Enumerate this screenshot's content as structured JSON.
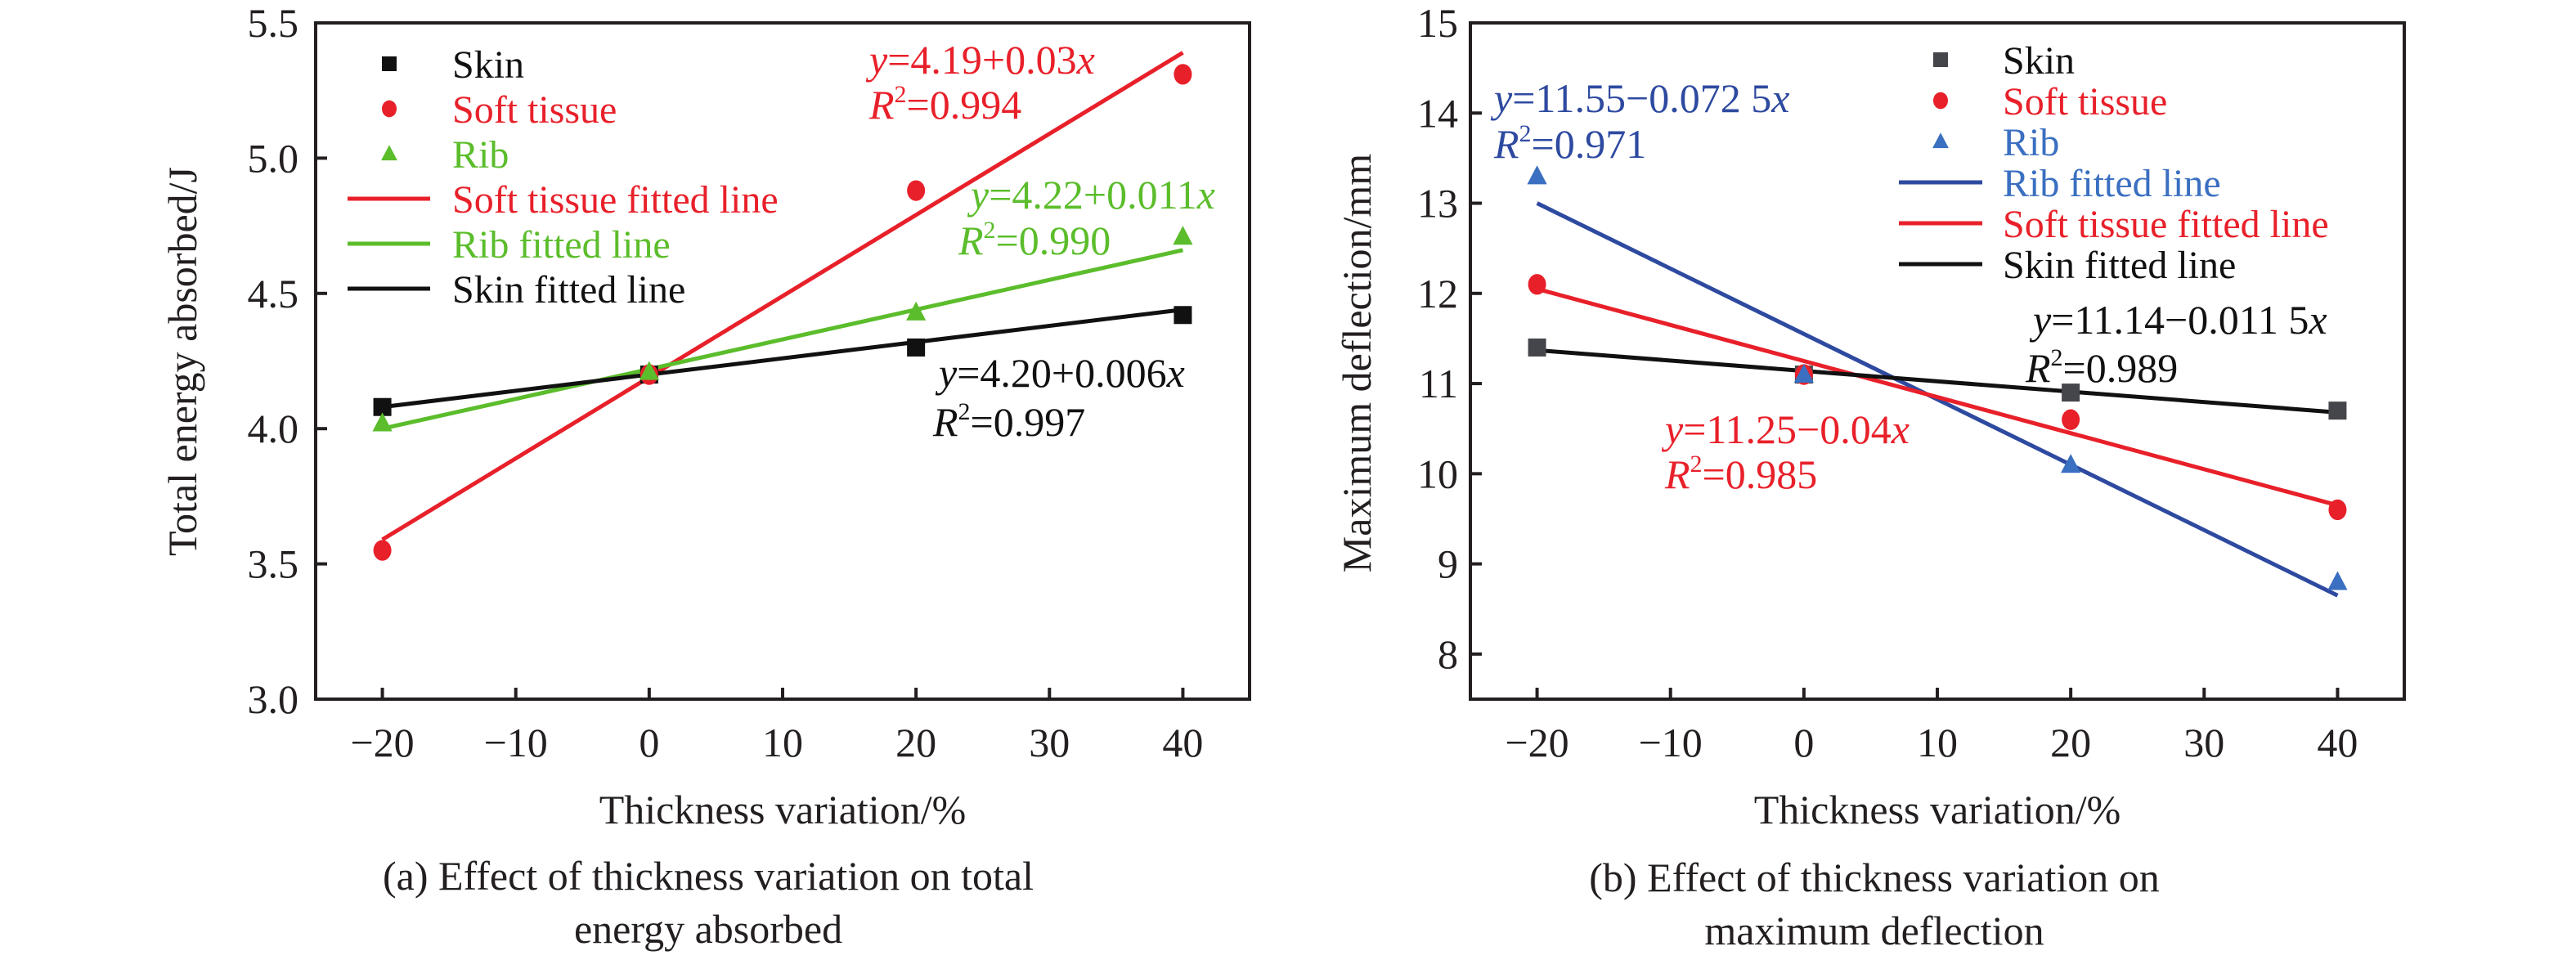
{
  "chart_data": [
    {
      "id": "a",
      "type": "scatter",
      "title": "",
      "caption_lines": [
        "(a) Effect of thickness variation on total",
        "energy absorbed"
      ],
      "xlabel": "Thickness variation/%",
      "ylabel": "Total energy absorbed/J",
      "xlim": [
        -25,
        45
      ],
      "ylim": [
        3.0,
        5.5
      ],
      "xticks": [
        -20,
        -10,
        0,
        10,
        20,
        30,
        40
      ],
      "xtick_labels": [
        "−20",
        "−10",
        "0",
        "10",
        "20",
        "30",
        "40"
      ],
      "yticks": [
        3.0,
        3.5,
        4.0,
        4.5,
        5.0,
        5.5
      ],
      "ytick_labels": [
        "3.0",
        "3.5",
        "4.0",
        "4.5",
        "5.0",
        "5.5"
      ],
      "grid": false,
      "legend_position": "top-left",
      "x": [
        -20,
        0,
        20,
        40
      ],
      "series": [
        {
          "name": "Skin",
          "marker": "square",
          "color": "#111111",
          "values": [
            4.08,
            4.2,
            4.3,
            4.42
          ]
        },
        {
          "name": "Soft tissue",
          "marker": "circle",
          "color": "#e8202a",
          "values": [
            3.55,
            4.2,
            4.88,
            5.31
          ]
        },
        {
          "name": "Rib",
          "marker": "triangle",
          "color": "#5bbd2b",
          "values": [
            4.02,
            4.21,
            4.43,
            4.71
          ]
        }
      ],
      "fits": [
        {
          "name": "Soft tissue fitted line",
          "color": "#e8202a",
          "intercept": 4.19,
          "slope": 0.03,
          "x_range": [
            -20,
            40
          ],
          "equation": "4.19+0.03",
          "r2": "0.994"
        },
        {
          "name": "Rib fitted line",
          "color": "#5bbd2b",
          "intercept": 4.22,
          "slope": 0.011,
          "x_range": [
            -20,
            40
          ],
          "equation": "4.22+0.011",
          "r2": "0.990"
        },
        {
          "name": "Skin fitted line",
          "color": "#111111",
          "intercept": 4.2,
          "slope": 0.006,
          "x_range": [
            -20,
            40
          ],
          "equation": "4.20+0.006",
          "r2": "0.997"
        }
      ],
      "legend": [
        {
          "label": "Skin",
          "kind": "marker",
          "marker": "square",
          "color": "#111111",
          "text_color": "#111111"
        },
        {
          "label": "Soft tissue",
          "kind": "marker",
          "marker": "circle",
          "color": "#e8202a",
          "text_color": "#e8202a"
        },
        {
          "label": "Rib",
          "kind": "marker",
          "marker": "triangle",
          "color": "#5bbd2b",
          "text_color": "#5bbd2b"
        },
        {
          "label": "Soft tissue fitted line",
          "kind": "line",
          "color": "#e8202a",
          "text_color": "#e8202a"
        },
        {
          "label": "Rib fitted line",
          "kind": "line",
          "color": "#5bbd2b",
          "text_color": "#5bbd2b"
        },
        {
          "label": "Skin fitted line",
          "kind": "line",
          "color": "#111111",
          "text_color": "#111111"
        }
      ],
      "annotations": [
        {
          "fit": "Soft tissue fitted line",
          "equation_text": "=4.19+0.03",
          "r2_text": "=0.994",
          "color": "#e8202a"
        },
        {
          "fit": "Rib fitted line",
          "equation_text": "=4.22+0.011",
          "r2_text": "=0.990",
          "color": "#5bbd2b"
        },
        {
          "fit": "Skin fitted line",
          "equation_text": "=4.20+0.006",
          "r2_text": "=0.997",
          "color": "#111111"
        }
      ]
    },
    {
      "id": "b",
      "type": "scatter",
      "title": "",
      "caption_lines": [
        "(b) Effect of thickness variation on",
        "maximum deflection"
      ],
      "xlabel": "Thickness variation/%",
      "ylabel": "Maximum deflection/mm",
      "xlim": [
        -25,
        45
      ],
      "ylim": [
        7.5,
        15
      ],
      "xticks": [
        -20,
        -10,
        0,
        10,
        20,
        30,
        40
      ],
      "xtick_labels": [
        "−20",
        "−10",
        "0",
        "10",
        "20",
        "30",
        "40"
      ],
      "yticks": [
        8,
        9,
        10,
        11,
        12,
        13,
        14,
        15
      ],
      "ytick_labels": [
        "8",
        "9",
        "10",
        "11",
        "12",
        "13",
        "14",
        "15"
      ],
      "grid": false,
      "legend_position": "top-right",
      "x": [
        -20,
        0,
        20,
        40
      ],
      "series": [
        {
          "name": "Skin",
          "marker": "square",
          "color": "#45464b",
          "values": [
            11.4,
            11.1,
            10.9,
            10.7
          ]
        },
        {
          "name": "Soft tissue",
          "marker": "circle",
          "color": "#e8202a",
          "values": [
            12.1,
            11.1,
            10.6,
            9.6
          ]
        },
        {
          "name": "Rib",
          "marker": "triangle",
          "color": "#3a6fc1",
          "values": [
            13.3,
            11.1,
            10.1,
            8.8
          ]
        }
      ],
      "fits": [
        {
          "name": "Rib fitted line",
          "color": "#2e4aa0",
          "intercept": 11.55,
          "slope": -0.0725,
          "x_range": [
            -20,
            40
          ],
          "equation": "11.55−0.072 5",
          "r2": "0.971"
        },
        {
          "name": "Soft tissue fitted line",
          "color": "#e8202a",
          "intercept": 11.25,
          "slope": -0.04,
          "x_range": [
            -20,
            40
          ],
          "equation": "11.25−0.04",
          "r2": "0.985"
        },
        {
          "name": "Skin fitted line",
          "color": "#111111",
          "intercept": 11.14,
          "slope": -0.0115,
          "x_range": [
            -20,
            40
          ],
          "equation": "11.14−0.011 5",
          "r2": "0.989"
        }
      ],
      "legend": [
        {
          "label": "Skin",
          "kind": "marker",
          "marker": "square",
          "color": "#45464b",
          "text_color": "#111111"
        },
        {
          "label": "Soft tissue",
          "kind": "marker",
          "marker": "circle",
          "color": "#e8202a",
          "text_color": "#e8202a"
        },
        {
          "label": "Rib",
          "kind": "marker",
          "marker": "triangle",
          "color": "#3a6fc1",
          "text_color": "#3a6fc1"
        },
        {
          "label": "Rib fitted line",
          "kind": "line",
          "color": "#2e4aa0",
          "text_color": "#3a6fc1"
        },
        {
          "label": "Soft tissue fitted line",
          "kind": "line",
          "color": "#e8202a",
          "text_color": "#e8202a"
        },
        {
          "label": "Skin fitted line",
          "kind": "line",
          "color": "#111111",
          "text_color": "#111111"
        }
      ],
      "annotations": [
        {
          "fit": "Rib fitted line",
          "equation_text": "=11.55−0.072 5",
          "r2_text": "=0.971",
          "color": "#2e4aa0"
        },
        {
          "fit": "Skin fitted line",
          "equation_text": "=11.14−0.011 5",
          "r2_text": "=0.989",
          "color": "#111111"
        },
        {
          "fit": "Soft tissue fitted line",
          "equation_text": "=11.25−0.04",
          "r2_text": "=0.985",
          "color": "#e8202a"
        }
      ]
    }
  ]
}
